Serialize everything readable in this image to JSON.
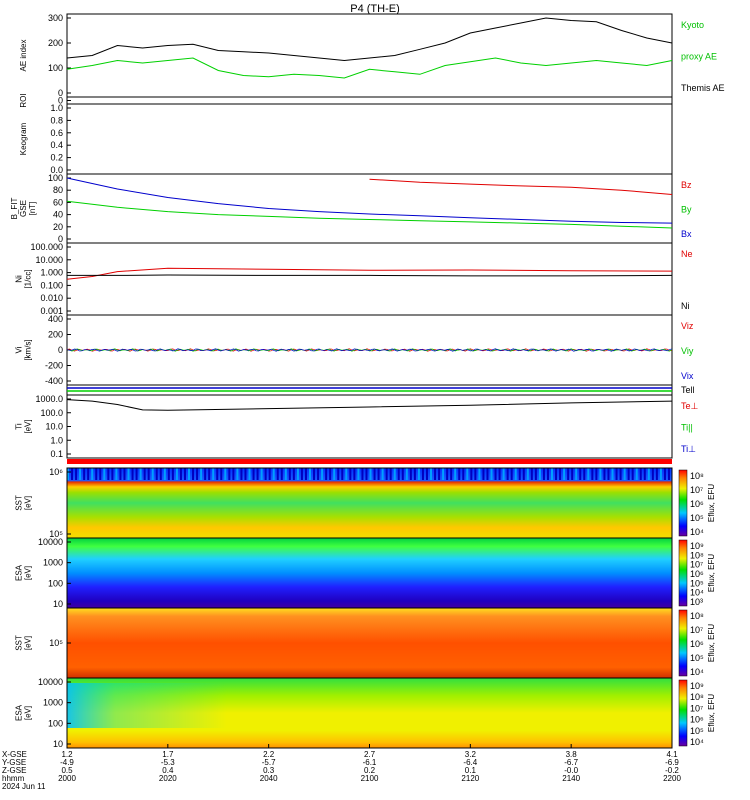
{
  "title": "P4 (TH-E)",
  "colors": {
    "black": "#000000",
    "red": "#e00000",
    "green": "#00d000",
    "blue": "#0000cc",
    "legend_green": "#00c000"
  },
  "panels": [
    {
      "id": "ae",
      "ylabel": "AE index",
      "yticks": [
        "300",
        "200",
        "100",
        "0"
      ],
      "legend": [
        {
          "text": "Kyoto",
          "color": "green"
        },
        {
          "text": "proxy AE",
          "color": "green"
        },
        {
          "text": "Themis AE",
          "color": "black"
        }
      ]
    },
    {
      "id": "roi",
      "ylabel": "ROI",
      "yticks": [
        "0"
      ]
    },
    {
      "id": "keogram",
      "ylabel": "Keogram",
      "yticks": [
        "1.0",
        "0.8",
        "0.6",
        "0.4",
        "0.2",
        "0.0"
      ]
    },
    {
      "id": "bfit",
      "ylabel_lines": [
        "B_FIT",
        "GSE",
        "[nT]"
      ],
      "yticks": [
        "100",
        "80",
        "60",
        "40",
        "20",
        "0"
      ],
      "legend": [
        {
          "text": "Bz",
          "color": "red"
        },
        {
          "text": "By",
          "color": "green"
        },
        {
          "text": "Bx",
          "color": "blue"
        }
      ]
    },
    {
      "id": "ni",
      "ylabel_lines": [
        "Ni",
        "[1/cc]"
      ],
      "yticks": [
        "100.000",
        "10.000",
        "1.000",
        "0.100",
        "0.010",
        "0.001"
      ],
      "legend": [
        {
          "text": "Ne",
          "color": "red"
        },
        {
          "text": "Ni",
          "color": "black"
        }
      ]
    },
    {
      "id": "vi",
      "ylabel_lines": [
        "Vi",
        "[km/s]"
      ],
      "yticks": [
        "400",
        "200",
        "0",
        "-200",
        "-400"
      ],
      "legend": [
        {
          "text": "Viz",
          "color": "red"
        },
        {
          "text": "Viy",
          "color": "green"
        },
        {
          "text": "Vix",
          "color": "blue"
        }
      ]
    },
    {
      "id": "tiflag",
      "legend": [
        {
          "text": "Tell",
          "color": "black"
        }
      ]
    },
    {
      "id": "ti",
      "ylabel_lines": [
        "Ti",
        "[eV]"
      ],
      "yticks": [
        "1000.0",
        "100.0",
        "10.0",
        "1.0",
        "0.1"
      ],
      "legend": [
        {
          "text": "Te⊥",
          "color": "red"
        },
        {
          "text": "Ti||",
          "color": "green"
        },
        {
          "text": "Ti⊥",
          "color": "blue"
        }
      ]
    },
    {
      "id": "sst_e",
      "ylabel_lines": [
        "SST",
        "[eV]"
      ],
      "yticks": [
        "10⁶",
        "10⁵"
      ],
      "cbar_ticks": [
        "10⁸",
        "10⁷",
        "10⁶",
        "10⁵",
        "10⁴"
      ],
      "cbar_label": "Eflux, EFU"
    },
    {
      "id": "esa_e",
      "ylabel_lines": [
        "ESA",
        "[eV]"
      ],
      "yticks": [
        "10000",
        "1000",
        "100",
        "10"
      ],
      "cbar_ticks": [
        "10⁹",
        "10⁸",
        "10⁷",
        "10⁶",
        "10⁵",
        "10⁴",
        "10³"
      ],
      "cbar_label": "Eflux, EFU"
    },
    {
      "id": "sst_i",
      "ylabel_lines": [
        "SST",
        "[eV]"
      ],
      "yticks": [
        "10⁵"
      ],
      "cbar_ticks": [
        "10⁸",
        "10⁷",
        "10⁶",
        "10⁵",
        "10⁴"
      ],
      "cbar_label": "Eflux, EFU"
    },
    {
      "id": "esa_i",
      "ylabel_lines": [
        "ESA",
        "[eV]"
      ],
      "yticks": [
        "10000",
        "1000",
        "100",
        "10"
      ],
      "cbar_ticks": [
        "10⁹",
        "10⁸",
        "10⁷",
        "10⁶",
        "10⁵",
        "10⁴"
      ],
      "cbar_label": "Eflux, EFU"
    }
  ],
  "xaxis": {
    "row_labels": [
      "X-GSE",
      "Y-GSE",
      "Z-GSE",
      "hhmm",
      "2024 Jun 11"
    ],
    "ticks": [
      {
        "x": "1.2",
        "y": "-4.9",
        "z": "0.5",
        "t": "2000"
      },
      {
        "x": "1.7",
        "y": "-5.3",
        "z": "0.4",
        "t": "2020"
      },
      {
        "x": "2.2",
        "y": "-5.7",
        "z": "0.3",
        "t": "2040"
      },
      {
        "x": "2.7",
        "y": "-6.1",
        "z": "0.2",
        "t": "2100"
      },
      {
        "x": "3.2",
        "y": "-6.4",
        "z": "0.1",
        "t": "2120"
      },
      {
        "x": "3.8",
        "y": "-6.7",
        "z": "-0.0",
        "t": "2140"
      },
      {
        "x": "4.1",
        "y": "-6.9",
        "z": "-0.2",
        "t": "2200"
      }
    ]
  },
  "chart_data": {
    "type": "line",
    "title": "P4 (TH-E)",
    "x_unit": "hhmm",
    "x_range": [
      "2000",
      "2200"
    ],
    "ae_index": {
      "ylim": [
        0,
        300
      ],
      "x": [
        "2000",
        "2005",
        "2010",
        "2015",
        "2020",
        "2025",
        "2030",
        "2035",
        "2040",
        "2045",
        "2050",
        "2055",
        "2100",
        "2105",
        "2110",
        "2115",
        "2120",
        "2125",
        "2130",
        "2135",
        "2140",
        "2145",
        "2150",
        "2155",
        "2200"
      ],
      "series": [
        {
          "name": "Themis AE",
          "color": "black",
          "values": [
            140,
            150,
            190,
            180,
            190,
            195,
            170,
            165,
            160,
            150,
            140,
            130,
            140,
            150,
            175,
            200,
            240,
            260,
            280,
            300,
            290,
            285,
            250,
            220,
            200
          ]
        },
        {
          "name": "Kyoto proxy AE",
          "color": "green",
          "values": [
            95,
            110,
            130,
            120,
            130,
            140,
            90,
            70,
            65,
            75,
            70,
            60,
            95,
            85,
            75,
            110,
            125,
            140,
            120,
            110,
            120,
            130,
            120,
            110,
            130
          ]
        }
      ]
    },
    "b_fit": {
      "ylim": [
        0,
        100
      ],
      "x": [
        "2000",
        "2010",
        "2020",
        "2030",
        "2040",
        "2050",
        "2100",
        "2110",
        "2120",
        "2130",
        "2140",
        "2150",
        "2200"
      ],
      "series": [
        {
          "name": "Bz",
          "color": "red",
          "values": [
            null,
            null,
            null,
            null,
            null,
            null,
            98,
            93,
            90,
            87,
            85,
            80,
            73
          ]
        },
        {
          "name": "By",
          "color": "green",
          "values": [
            62,
            52,
            45,
            40,
            37,
            34,
            32,
            30,
            28,
            26,
            24,
            21,
            18
          ]
        },
        {
          "name": "Bx",
          "color": "blue",
          "values": [
            100,
            82,
            68,
            58,
            50,
            45,
            41,
            38,
            35,
            32,
            29,
            27,
            26
          ]
        }
      ]
    },
    "density": {
      "scale": "log",
      "ylim": [
        0.001,
        100
      ],
      "x": [
        "2000",
        "2005",
        "2010",
        "2020",
        "2040",
        "2100",
        "2120",
        "2140",
        "2200"
      ],
      "series": [
        {
          "name": "Ne",
          "color": "red",
          "values": [
            0.3,
            0.5,
            1.2,
            2.2,
            1.8,
            1.5,
            1.6,
            1.4,
            1.3
          ]
        },
        {
          "name": "Ni",
          "color": "black",
          "values": [
            0.6,
            0.6,
            0.6,
            0.65,
            0.6,
            0.6,
            0.55,
            0.55,
            0.6
          ]
        }
      ]
    },
    "velocity": {
      "ylim": [
        -500,
        500
      ],
      "series": [
        {
          "name": "Viz",
          "color": "red",
          "values": [
            0
          ]
        },
        {
          "name": "Viy",
          "color": "green",
          "values": [
            0
          ]
        },
        {
          "name": "Vix",
          "color": "blue",
          "values": [
            0
          ]
        }
      ]
    },
    "temperature": {
      "scale": "log",
      "ylim": [
        0.1,
        1000
      ],
      "x": [
        "2000",
        "2005",
        "2010",
        "2015",
        "2020",
        "2040",
        "2100",
        "2120",
        "2140",
        "2200"
      ],
      "series": [
        {
          "name": "Ti",
          "color": "black",
          "values": [
            900,
            700,
            400,
            160,
            150,
            200,
            260,
            350,
            520,
            700
          ]
        }
      ]
    }
  }
}
